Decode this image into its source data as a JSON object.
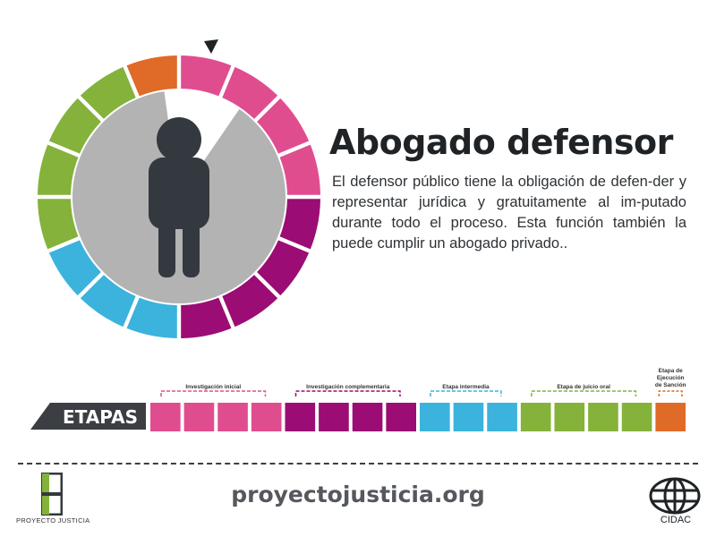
{
  "title": "Abogado defensor",
  "description": "El defensor público tiene la obligación de defen-der y representar jurídica y gratuitamente al im-putado durante todo el proceso. Esta función también la puede cumplir un abogado privado..",
  "stages_label": "ETAPAS",
  "stages": [
    {
      "name": "Investigación inicial",
      "color": "#e04d8f",
      "blocks": 4
    },
    {
      "name": "Investigación complementaria",
      "color": "#9b0c74",
      "blocks": 4
    },
    {
      "name": "Etapa intermedia",
      "color": "#3bb3dd",
      "blocks": 3
    },
    {
      "name": "Etapa de juicio oral",
      "color": "#84b23a",
      "blocks": 4
    },
    {
      "name": "Etapa de Ejecución de Sanción",
      "color": "#e06a27",
      "blocks": 1
    }
  ],
  "wheel": {
    "total_segments": 16,
    "highlighted_segment": 1,
    "center_color": "#b3b3b3",
    "figure_color": "#33393f"
  },
  "footer": {
    "url": "proyectojusticia.org",
    "left_logo": "PROYECTO JUSTICIA",
    "right_logo": "CIDAC"
  }
}
